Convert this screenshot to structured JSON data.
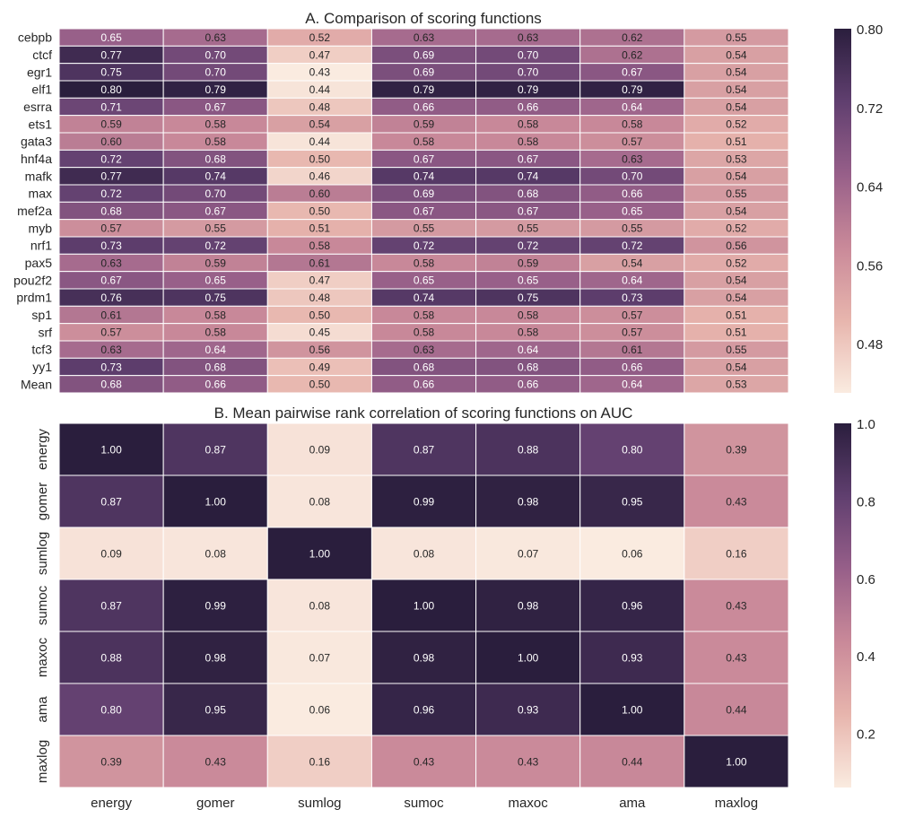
{
  "chart_data": [
    {
      "type": "heatmap",
      "title": "A.  Comparison of scoring functions",
      "rows": [
        "cebpb",
        "ctcf",
        "egr1",
        "elf1",
        "esrra",
        "ets1",
        "gata3",
        "hnf4a",
        "mafk",
        "max",
        "mef2a",
        "myb",
        "nrf1",
        "pax5",
        "pou2f2",
        "prdm1",
        "sp1",
        "srf",
        "tcf3",
        "yy1",
        "Mean"
      ],
      "columns": [
        "energy",
        "gomer",
        "sumlog",
        "sumoc",
        "maxoc",
        "ama",
        "maxlog"
      ],
      "values": [
        [
          0.65,
          0.63,
          0.52,
          0.63,
          0.63,
          0.62,
          0.55
        ],
        [
          0.77,
          0.7,
          0.47,
          0.69,
          0.7,
          0.62,
          0.54
        ],
        [
          0.75,
          0.7,
          0.43,
          0.69,
          0.7,
          0.67,
          0.54
        ],
        [
          0.8,
          0.79,
          0.44,
          0.79,
          0.79,
          0.79,
          0.54
        ],
        [
          0.71,
          0.67,
          0.48,
          0.66,
          0.66,
          0.64,
          0.54
        ],
        [
          0.59,
          0.58,
          0.54,
          0.59,
          0.58,
          0.58,
          0.52
        ],
        [
          0.6,
          0.58,
          0.44,
          0.58,
          0.58,
          0.57,
          0.51
        ],
        [
          0.72,
          0.68,
          0.5,
          0.67,
          0.67,
          0.63,
          0.53
        ],
        [
          0.77,
          0.74,
          0.46,
          0.74,
          0.74,
          0.7,
          0.54
        ],
        [
          0.72,
          0.7,
          0.6,
          0.69,
          0.68,
          0.66,
          0.55
        ],
        [
          0.68,
          0.67,
          0.5,
          0.67,
          0.67,
          0.65,
          0.54
        ],
        [
          0.57,
          0.55,
          0.51,
          0.55,
          0.55,
          0.55,
          0.52
        ],
        [
          0.73,
          0.72,
          0.58,
          0.72,
          0.72,
          0.72,
          0.56
        ],
        [
          0.63,
          0.59,
          0.61,
          0.58,
          0.59,
          0.54,
          0.52
        ],
        [
          0.67,
          0.65,
          0.47,
          0.65,
          0.65,
          0.64,
          0.54
        ],
        [
          0.76,
          0.75,
          0.48,
          0.74,
          0.75,
          0.73,
          0.54
        ],
        [
          0.61,
          0.58,
          0.5,
          0.58,
          0.58,
          0.57,
          0.51
        ],
        [
          0.57,
          0.58,
          0.45,
          0.58,
          0.58,
          0.57,
          0.51
        ],
        [
          0.63,
          0.64,
          0.56,
          0.63,
          0.64,
          0.61,
          0.55
        ],
        [
          0.73,
          0.68,
          0.49,
          0.68,
          0.68,
          0.66,
          0.54
        ],
        [
          0.68,
          0.66,
          0.5,
          0.66,
          0.66,
          0.64,
          0.53
        ]
      ],
      "value_format": "0.00",
      "color_range": [
        0.43,
        0.8
      ],
      "colorbar_ticks": [
        "0.48",
        "0.56",
        "0.64",
        "0.72",
        "0.80"
      ],
      "colorbar_tick_values": [
        0.48,
        0.56,
        0.64,
        0.72,
        0.8
      ],
      "xlabel": "",
      "ylabel": "",
      "grid": false,
      "legend": "colorbar-right"
    },
    {
      "type": "heatmap",
      "title": "B.  Mean pairwise rank correlation of scoring functions on AUC",
      "rows": [
        "energy",
        "gomer",
        "sumlog",
        "sumoc",
        "maxoc",
        "ama",
        "maxlog"
      ],
      "columns": [
        "energy",
        "gomer",
        "sumlog",
        "sumoc",
        "maxoc",
        "ama",
        "maxlog"
      ],
      "values": [
        [
          1.0,
          0.87,
          0.09,
          0.87,
          0.88,
          0.8,
          0.39
        ],
        [
          0.87,
          1.0,
          0.08,
          0.99,
          0.98,
          0.95,
          0.43
        ],
        [
          0.09,
          0.08,
          1.0,
          0.08,
          0.07,
          0.06,
          0.16
        ],
        [
          0.87,
          0.99,
          0.08,
          1.0,
          0.98,
          0.96,
          0.43
        ],
        [
          0.88,
          0.98,
          0.07,
          0.98,
          1.0,
          0.93,
          0.43
        ],
        [
          0.8,
          0.95,
          0.06,
          0.96,
          0.93,
          1.0,
          0.44
        ],
        [
          0.39,
          0.43,
          0.16,
          0.43,
          0.43,
          0.44,
          1.0
        ]
      ],
      "value_format": "0.00",
      "color_range": [
        0.06,
        1.0
      ],
      "colorbar_ticks": [
        "0.2",
        "0.4",
        "0.6",
        "0.8",
        "1.0"
      ],
      "colorbar_tick_values": [
        0.2,
        0.4,
        0.6,
        0.8,
        1.0
      ],
      "xlabel": "",
      "ylabel": "",
      "grid": false,
      "legend": "colorbar-right"
    }
  ],
  "colormap": [
    "#faebe0",
    "#e7b5ad",
    "#c98999",
    "#975f89",
    "#603f6f",
    "#2a1e3d"
  ]
}
